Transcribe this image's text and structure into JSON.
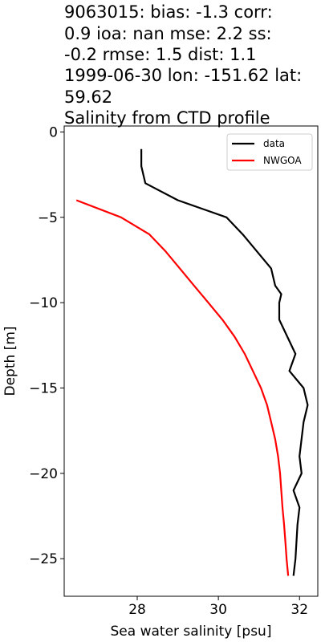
{
  "chart_data": {
    "type": "line",
    "title_lines": [
      "9063015: bias: -1.3  corr:",
      "0.9  ioa: nan  mse: 2.2  ss:",
      "-0.2  rmse: 1.5  dist: 1.1",
      "1999-06-30 lon: -151.62 lat:",
      "59.62",
      "Salinity from CTD profile"
    ],
    "xlabel": "Sea water salinity [psu]",
    "ylabel": "Depth [m]",
    "xlim": [
      26.2,
      32.45
    ],
    "ylim": [
      -27.2,
      0.35
    ],
    "xticks": [
      28,
      30,
      32
    ],
    "yticks": [
      0,
      -5,
      -10,
      -15,
      -20,
      -25
    ],
    "legend_position": "top-right",
    "series": [
      {
        "name": "data",
        "color": "#000000",
        "points": [
          [
            28.1,
            -1
          ],
          [
            28.1,
            -2
          ],
          [
            28.2,
            -3
          ],
          [
            29.0,
            -4
          ],
          [
            30.2,
            -5
          ],
          [
            30.6,
            -6
          ],
          [
            30.95,
            -7
          ],
          [
            31.3,
            -8
          ],
          [
            31.4,
            -9
          ],
          [
            31.55,
            -9.5
          ],
          [
            31.5,
            -10
          ],
          [
            31.5,
            -11
          ],
          [
            31.9,
            -13
          ],
          [
            31.75,
            -14
          ],
          [
            32.1,
            -15
          ],
          [
            32.2,
            -16
          ],
          [
            32.1,
            -17
          ],
          [
            32.0,
            -19
          ],
          [
            32.05,
            -20
          ],
          [
            31.85,
            -21
          ],
          [
            32.0,
            -22
          ],
          [
            31.95,
            -23
          ],
          [
            31.9,
            -25
          ],
          [
            31.85,
            -26
          ]
        ]
      },
      {
        "name": "NWGOA",
        "color": "#ff0000",
        "points": [
          [
            26.5,
            -4
          ],
          [
            27.6,
            -5
          ],
          [
            28.3,
            -6
          ],
          [
            28.7,
            -7
          ],
          [
            29.05,
            -8
          ],
          [
            29.4,
            -9
          ],
          [
            29.75,
            -10
          ],
          [
            30.1,
            -11
          ],
          [
            30.4,
            -12
          ],
          [
            30.65,
            -13
          ],
          [
            30.85,
            -14
          ],
          [
            31.05,
            -15
          ],
          [
            31.2,
            -16
          ],
          [
            31.3,
            -17
          ],
          [
            31.4,
            -18
          ],
          [
            31.47,
            -19
          ],
          [
            31.52,
            -20
          ],
          [
            31.55,
            -21
          ],
          [
            31.58,
            -22
          ],
          [
            31.62,
            -23
          ],
          [
            31.65,
            -24
          ],
          [
            31.68,
            -25
          ],
          [
            31.72,
            -26
          ]
        ]
      }
    ]
  }
}
